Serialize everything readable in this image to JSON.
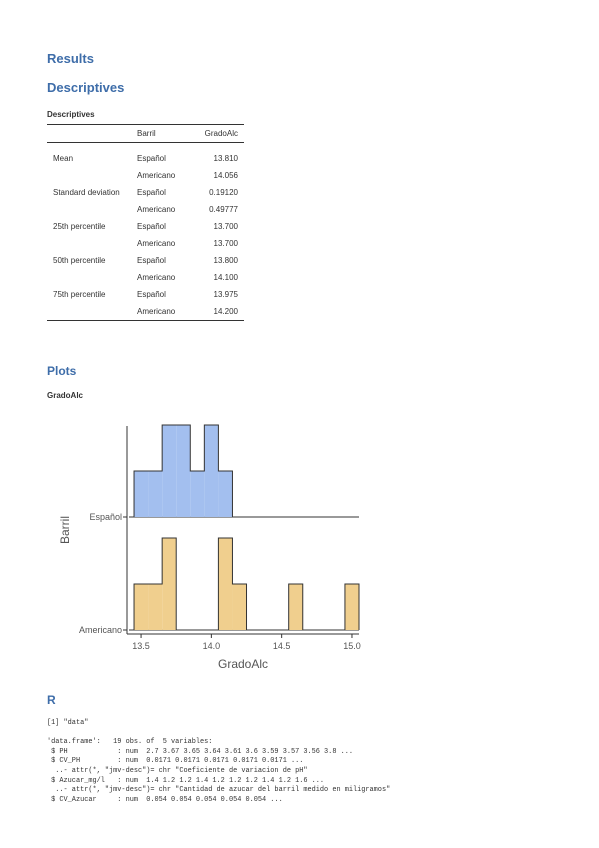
{
  "results_heading": "Results",
  "descriptives_heading": "Descriptives",
  "table": {
    "caption": "Descriptives",
    "col_group": "Barril",
    "col_value": "GradoAlc",
    "rows": [
      {
        "stat": "Mean",
        "group": "Español",
        "value": "13.810"
      },
      {
        "stat": "",
        "group": "Americano",
        "value": "14.056"
      },
      {
        "stat": "Standard deviation",
        "group": "Español",
        "value": "0.19120"
      },
      {
        "stat": "",
        "group": "Americano",
        "value": "0.49777"
      },
      {
        "stat": "25th percentile",
        "group": "Español",
        "value": "13.700"
      },
      {
        "stat": "",
        "group": "Americano",
        "value": "13.700"
      },
      {
        "stat": "50th percentile",
        "group": "Español",
        "value": "13.800"
      },
      {
        "stat": "",
        "group": "Americano",
        "value": "14.100"
      },
      {
        "stat": "75th percentile",
        "group": "Español",
        "value": "13.975"
      },
      {
        "stat": "",
        "group": "Americano",
        "value": "14.200"
      }
    ]
  },
  "plots_heading": "Plots",
  "plot_caption": "GradoAlc",
  "chart_data": {
    "type": "ridgeline histogram",
    "xlabel": "GradoAlc",
    "ylabel": "Barril",
    "xlim": [
      13.4,
      15.05
    ],
    "xticks": [
      "13.5",
      "14.0",
      "14.5",
      "15.0"
    ],
    "xtick_values": [
      13.5,
      14.0,
      14.5,
      15.0
    ],
    "bin_width": 0.1,
    "series": [
      {
        "name": "Español",
        "color": "#a3bfef",
        "bins": [
          [
            13.5,
            2
          ],
          [
            13.6,
            2
          ],
          [
            13.7,
            4
          ],
          [
            13.8,
            4
          ],
          [
            13.9,
            2
          ],
          [
            14.0,
            4
          ],
          [
            14.1,
            2
          ]
        ]
      },
      {
        "name": "Americano",
        "color": "#f0cf8e",
        "bins": [
          [
            13.5,
            2
          ],
          [
            13.6,
            2
          ],
          [
            13.7,
            4
          ],
          [
            14.1,
            4
          ],
          [
            14.2,
            2
          ],
          [
            14.6,
            2
          ],
          [
            15.0,
            2
          ]
        ]
      }
    ]
  },
  "r_heading": "R",
  "r_output": "[1] \"data\"\n\n'data.frame':   19 obs. of  5 variables:\n $ PH            : num  2.7 3.67 3.65 3.64 3.61 3.6 3.59 3.57 3.56 3.8 ...\n $ CV_PH         : num  0.0171 0.0171 0.0171 0.0171 0.0171 ...\n  ..- attr(*, \"jmv-desc\")= chr \"Coeficiente de variacion de pH\"\n $ Azucar_mg/l   : num  1.4 1.2 1.2 1.4 1.2 1.2 1.2 1.4 1.2 1.6 ...\n  ..- attr(*, \"jmv-desc\")= chr \"Cantidad de azucar del barril medido en miligramos\"\n $ CV_Azucar     : num  0.054 0.054 0.054 0.054 0.054 ..."
}
